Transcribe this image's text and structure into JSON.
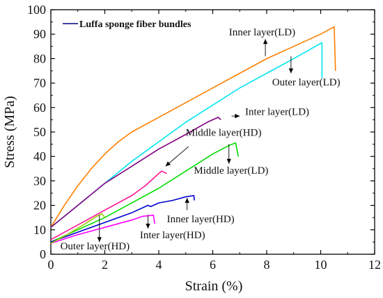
{
  "chart_data": {
    "type": "line",
    "xlabel": "Strain (%)",
    "ylabel": "Stress (MPa)",
    "xlim": [
      0,
      12
    ],
    "ylim": [
      0,
      100
    ],
    "xticks": [
      "0",
      "2",
      "4",
      "6",
      "8",
      "10",
      "12"
    ],
    "yticks": [
      "0",
      "10",
      "20",
      "30",
      "40",
      "50",
      "60",
      "70",
      "80",
      "90",
      "100"
    ],
    "legend": {
      "label": "Luffa sponge fiber bundles",
      "placement": "top-left",
      "color": "#000080"
    },
    "grid": false,
    "series": [
      {
        "color": "#FF7F00",
        "points": [
          [
            0,
            11
          ],
          [
            0.5,
            20
          ],
          [
            1,
            28
          ],
          [
            1.5,
            35
          ],
          [
            2,
            41
          ],
          [
            2.5,
            46
          ],
          [
            3,
            50
          ],
          [
            3.5,
            53
          ],
          [
            4,
            56
          ],
          [
            5,
            62
          ],
          [
            6,
            68
          ],
          [
            7,
            74
          ],
          [
            8,
            80
          ],
          [
            9,
            85
          ],
          [
            10,
            90
          ],
          [
            10.5,
            93
          ],
          [
            10.55,
            75
          ]
        ]
      },
      {
        "color": "#00E5EE",
        "points": [
          [
            0,
            11
          ],
          [
            1,
            20
          ],
          [
            2,
            29
          ],
          [
            3,
            38
          ],
          [
            4,
            46
          ],
          [
            5,
            54
          ],
          [
            6,
            61
          ],
          [
            7,
            68
          ],
          [
            8,
            74
          ],
          [
            9,
            80
          ],
          [
            9.8,
            85
          ],
          [
            10.05,
            86.5
          ],
          [
            10.05,
            72
          ]
        ]
      },
      {
        "color": "#800080",
        "points": [
          [
            0,
            11
          ],
          [
            1,
            20
          ],
          [
            2,
            29
          ],
          [
            3,
            36
          ],
          [
            4,
            43
          ],
          [
            5,
            49
          ],
          [
            5.8,
            54
          ],
          [
            6.2,
            56
          ],
          [
            6.3,
            55
          ]
        ]
      },
      {
        "color": "#00DD00",
        "points": [
          [
            0,
            5
          ],
          [
            1,
            10
          ],
          [
            2,
            15
          ],
          [
            3,
            21
          ],
          [
            4,
            27
          ],
          [
            5,
            34
          ],
          [
            6,
            41
          ],
          [
            6.6,
            44.5
          ],
          [
            6.85,
            45.5
          ],
          [
            6.95,
            40
          ]
        ]
      },
      {
        "color": "#FF1493",
        "points": [
          [
            0,
            6
          ],
          [
            1,
            12
          ],
          [
            2,
            18
          ],
          [
            3,
            24
          ],
          [
            3.5,
            28
          ],
          [
            4.1,
            34
          ],
          [
            4.3,
            33
          ]
        ]
      },
      {
        "color": "#0000CD",
        "points": [
          [
            0,
            5
          ],
          [
            1,
            9
          ],
          [
            2,
            13
          ],
          [
            3,
            17
          ],
          [
            3.6,
            20
          ],
          [
            3.7,
            19.5
          ],
          [
            4,
            21
          ],
          [
            4.5,
            22
          ],
          [
            5,
            23.5
          ],
          [
            5.3,
            24
          ],
          [
            5.32,
            22
          ]
        ]
      },
      {
        "color": "#FF00FF",
        "points": [
          [
            0,
            4.5
          ],
          [
            1,
            8
          ],
          [
            2,
            11
          ],
          [
            3,
            14
          ],
          [
            3.4,
            15.5
          ],
          [
            3.8,
            16
          ],
          [
            3.85,
            12.5
          ]
        ]
      },
      {
        "color": "#99CC00",
        "points": [
          [
            0,
            4.5
          ],
          [
            0.6,
            8
          ],
          [
            1.2,
            12
          ],
          [
            1.7,
            15.5
          ],
          [
            1.9,
            16.5
          ],
          [
            2.0,
            15
          ]
        ]
      }
    ],
    "annotations": [
      {
        "text": "Inner layer(LD)",
        "x": 6.6,
        "y": 89.5
      },
      {
        "text": "Outer layer(LD)",
        "x": 8.2,
        "y": 69
      },
      {
        "text": "Inter layer(LD)",
        "x": 7.2,
        "y": 57
      },
      {
        "text": "Middle layer(HD)",
        "x": 5.0,
        "y": 48.5
      },
      {
        "text": "Middle layer(LD)",
        "x": 5.3,
        "y": 33
      },
      {
        "text": "Inner layer(HD)",
        "x": 4.3,
        "y": 13
      },
      {
        "text": "Inter layer(HD)",
        "x": 3.3,
        "y": 6.5
      },
      {
        "text": "Outer layer(HD)",
        "x": 0.35,
        "y": 2
      }
    ]
  }
}
